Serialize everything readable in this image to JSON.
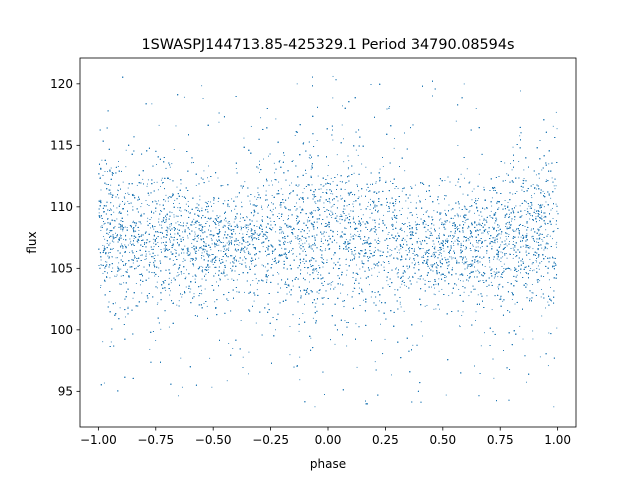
{
  "chart_data": {
    "type": "scatter",
    "title": "1SWASPJ144713.85-425329.1 Period 34790.08594s",
    "xlabel": "phase",
    "ylabel": "flux",
    "xlim": [
      -1.08,
      1.08
    ],
    "ylim": [
      92.1,
      122.1
    ],
    "grid": false,
    "legend": "none",
    "x_ticks": [
      -1.0,
      -0.75,
      -0.5,
      -0.25,
      0.0,
      0.25,
      0.5,
      0.75,
      1.0
    ],
    "x_tick_labels": [
      "−1.00",
      "−0.75",
      "−0.50",
      "−0.25",
      "0.00",
      "0.25",
      "0.50",
      "0.75",
      "1.00"
    ],
    "y_ticks": [
      95,
      100,
      105,
      110,
      115,
      120
    ],
    "y_tick_labels": [
      "95",
      "100",
      "105",
      "110",
      "115",
      "120"
    ],
    "series": [
      {
        "color": "#1f77b4",
        "marker": "point",
        "x_range": [
          -1.0,
          1.0
        ],
        "core_band_center": 107.6,
        "core_band_halfwidth_min": 2.3,
        "core_band_halfwidth_max": 3.2,
        "outlier_range": [
          93.7,
          120.7
        ],
        "trend_samples": [
          {
            "x": -1.0,
            "center": 107.8
          },
          {
            "x": -0.75,
            "center": 107.6
          },
          {
            "x": -0.5,
            "center": 106.8
          },
          {
            "x": -0.25,
            "center": 107.4
          },
          {
            "x": 0.0,
            "center": 108.0
          },
          {
            "x": 0.25,
            "center": 107.5
          },
          {
            "x": 0.5,
            "center": 106.6
          },
          {
            "x": 0.75,
            "center": 107.2
          },
          {
            "x": 1.0,
            "center": 107.9
          }
        ]
      }
    ]
  }
}
